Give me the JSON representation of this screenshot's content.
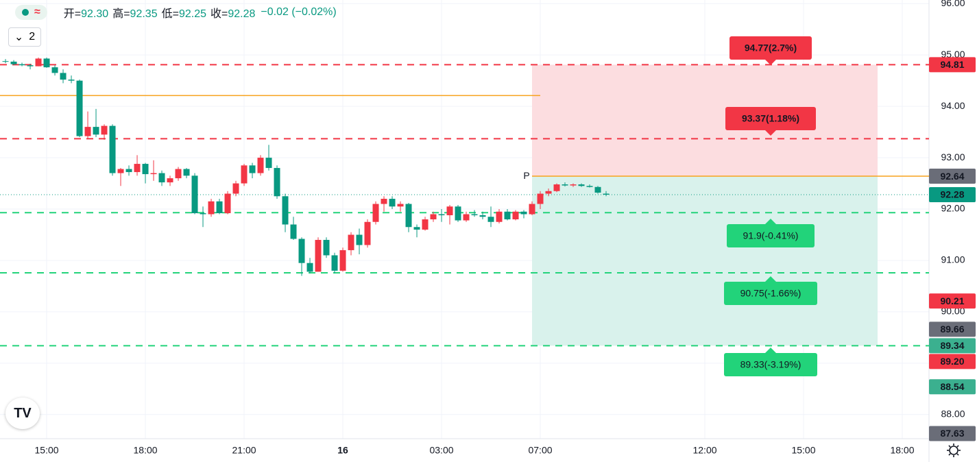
{
  "header": {
    "ohlc": [
      {
        "label": "开=",
        "value": "92.30"
      },
      {
        "label": "高=",
        "value": "92.35"
      },
      {
        "label": "低=",
        "value": "92.25"
      },
      {
        "label": "收=",
        "value": "92.28"
      }
    ],
    "change": "−0.02 (−0.02%)",
    "icon": "≈",
    "interval_button": "2"
  },
  "chart_data": {
    "type": "candlestick",
    "open": [
      94.88,
      94.87,
      94.82,
      94.8,
      94.78,
      94.93,
      94.76,
      94.65,
      94.52,
      94.5,
      93.42,
      93.6,
      93.45,
      93.62,
      92.7,
      92.78,
      92.72,
      92.88,
      92.68,
      92.7,
      92.52,
      92.6,
      92.78,
      92.65,
      91.92,
      91.9,
      92.15,
      91.92,
      92.3,
      92.5,
      92.85,
      92.7,
      93.0,
      92.8,
      92.25,
      91.7,
      91.42,
      90.95,
      90.78,
      91.4,
      91.1,
      90.8,
      91.2,
      91.5,
      91.3,
      91.75,
      92.1,
      92.2,
      92.05,
      92.1,
      91.65,
      91.6,
      91.8,
      91.9,
      91.88,
      92.05,
      91.78,
      91.9,
      91.88,
      91.85,
      91.75,
      91.95,
      91.8,
      91.95,
      91.9,
      92.1,
      92.3,
      92.35,
      92.48,
      92.46,
      92.48,
      92.45,
      92.43,
      92.3
    ],
    "high": [
      94.92,
      94.9,
      94.85,
      94.83,
      94.95,
      94.95,
      94.8,
      94.72,
      94.6,
      94.52,
      93.9,
      93.95,
      93.65,
      93.65,
      92.8,
      92.85,
      93.05,
      92.9,
      92.95,
      92.75,
      92.65,
      92.82,
      92.8,
      92.7,
      92.05,
      92.2,
      92.2,
      92.35,
      92.55,
      92.88,
      92.9,
      93.05,
      93.25,
      92.85,
      92.3,
      91.85,
      91.45,
      91.05,
      91.45,
      91.45,
      91.15,
      91.25,
      91.55,
      91.62,
      91.8,
      92.15,
      92.25,
      92.25,
      92.15,
      92.12,
      91.7,
      91.85,
      91.95,
      92.0,
      92.08,
      92.08,
      91.95,
      91.98,
      91.95,
      92.05,
      92.0,
      92.0,
      91.98,
      91.98,
      92.15,
      92.35,
      92.4,
      92.5,
      92.52,
      92.5,
      92.5,
      92.48,
      92.45,
      92.35
    ],
    "low": [
      94.84,
      94.8,
      94.78,
      94.72,
      94.78,
      94.75,
      94.6,
      94.45,
      94.45,
      93.4,
      93.38,
      93.4,
      93.35,
      92.65,
      92.45,
      92.65,
      92.65,
      92.5,
      92.55,
      92.45,
      92.45,
      92.55,
      92.6,
      91.9,
      91.65,
      91.85,
      91.9,
      91.9,
      92.25,
      92.45,
      92.6,
      92.65,
      92.75,
      92.2,
      91.55,
      91.4,
      90.7,
      90.75,
      90.78,
      91.05,
      90.75,
      90.78,
      91.1,
      91.12,
      91.25,
      91.7,
      91.95,
      92.0,
      91.95,
      91.55,
      91.45,
      91.58,
      91.75,
      91.75,
      91.7,
      91.75,
      91.75,
      91.85,
      91.8,
      91.65,
      91.72,
      91.78,
      91.78,
      91.82,
      91.88,
      92.0,
      92.25,
      92.33,
      92.44,
      92.43,
      92.43,
      92.42,
      92.3,
      92.25
    ],
    "close": [
      94.87,
      94.82,
      94.8,
      94.78,
      94.93,
      94.76,
      94.65,
      94.52,
      94.5,
      93.42,
      93.6,
      93.45,
      93.62,
      92.7,
      92.78,
      92.72,
      92.88,
      92.68,
      92.7,
      92.52,
      92.6,
      92.78,
      92.65,
      91.92,
      91.9,
      92.15,
      91.92,
      92.3,
      92.5,
      92.85,
      92.7,
      93.0,
      92.8,
      92.25,
      91.7,
      91.42,
      90.95,
      90.78,
      91.4,
      91.1,
      90.8,
      91.2,
      91.5,
      91.3,
      91.75,
      92.1,
      92.2,
      92.05,
      92.1,
      91.65,
      91.6,
      91.8,
      91.9,
      91.88,
      92.05,
      91.78,
      91.9,
      91.88,
      91.85,
      91.75,
      91.95,
      91.8,
      91.95,
      91.9,
      92.1,
      92.3,
      92.35,
      92.48,
      92.46,
      92.48,
      92.45,
      92.43,
      92.32,
      92.28
    ],
    "up_color": "#f23645",
    "down_color": "#089981",
    "xlim": [
      -0.67,
      112.25
    ],
    "xticks": [
      {
        "value": 5,
        "label": "15:00"
      },
      {
        "value": 17,
        "label": "18:00"
      },
      {
        "value": 29,
        "label": "21:00"
      },
      {
        "value": 41,
        "label": "16",
        "bold": true
      },
      {
        "value": 53,
        "label": "03:00"
      },
      {
        "value": 65,
        "label": "07:00"
      },
      {
        "value": 85,
        "label": "12:00"
      },
      {
        "value": 97,
        "label": "15:00"
      },
      {
        "value": 109,
        "label": "18:00"
      }
    ],
    "ylim": [
      87.53,
      96.07
    ],
    "yticks": [
      {
        "value": 88,
        "label": "88.00"
      },
      {
        "value": 89,
        "label": "89.00"
      },
      {
        "value": 90,
        "label": "90.00"
      },
      {
        "value": 91,
        "label": "91.00"
      },
      {
        "value": 92,
        "label": "92.00"
      },
      {
        "value": 93,
        "label": "93.00"
      },
      {
        "value": 94,
        "label": "94.00"
      },
      {
        "value": 95,
        "label": "95.00"
      },
      {
        "value": 96,
        "label": "96.00"
      }
    ],
    "grid": true,
    "zones": [
      {
        "from": 92.64,
        "to": 94.81,
        "color": "#fcdde0"
      },
      {
        "from": 89.34,
        "to": 92.64,
        "color": "#d9f2ec"
      }
    ],
    "levels": [
      {
        "value": 94.81,
        "color": "#f23645",
        "dash": true
      },
      {
        "value": 93.37,
        "color": "#f23645",
        "dash": true
      },
      {
        "value": 91.93,
        "color": "#22d37a",
        "dash": true
      },
      {
        "value": 90.76,
        "color": "#22d37a",
        "dash": true
      },
      {
        "value": 89.34,
        "color": "#22d37a",
        "dash": true
      },
      {
        "value": 94.21,
        "color": "#f7a21b",
        "dash": false
      },
      {
        "value": 92.64,
        "color": "#f7a21b",
        "dash": false
      }
    ],
    "last_price": 92.28,
    "pivot_label": "P",
    "annotations": [
      {
        "text": "94.77(2.7%)",
        "color": "#f23645"
      },
      {
        "text": "93.37(1.18%)",
        "color": "#f23645"
      },
      {
        "text": "91.9(-0.41%)",
        "color": "#22d37a"
      },
      {
        "text": "90.75(-1.66%)",
        "color": "#22d37a"
      },
      {
        "text": "89.33(-3.19%)",
        "color": "#22d37a"
      }
    ],
    "price_labels": [
      {
        "value": 94.81,
        "label": "94.81",
        "color": "#f23645"
      },
      {
        "value": 92.64,
        "label": "92.64",
        "color": "#6a6d78"
      },
      {
        "value": 92.28,
        "label": "92.28",
        "color": "#089981"
      },
      {
        "value": 90.21,
        "label": "90.21",
        "color": "#f23645"
      },
      {
        "value": 89.66,
        "label": "89.66",
        "color": "#6a6d78"
      },
      {
        "value": 89.34,
        "label": "89.34",
        "color": "#3bb08f"
      },
      {
        "value": 89.2,
        "label": "89.20",
        "color": "#f23645"
      },
      {
        "value": 88.54,
        "label": "88.54",
        "color": "#3bb08f"
      },
      {
        "value": 87.63,
        "label": "87.63",
        "color": "#6a6d78"
      }
    ]
  }
}
